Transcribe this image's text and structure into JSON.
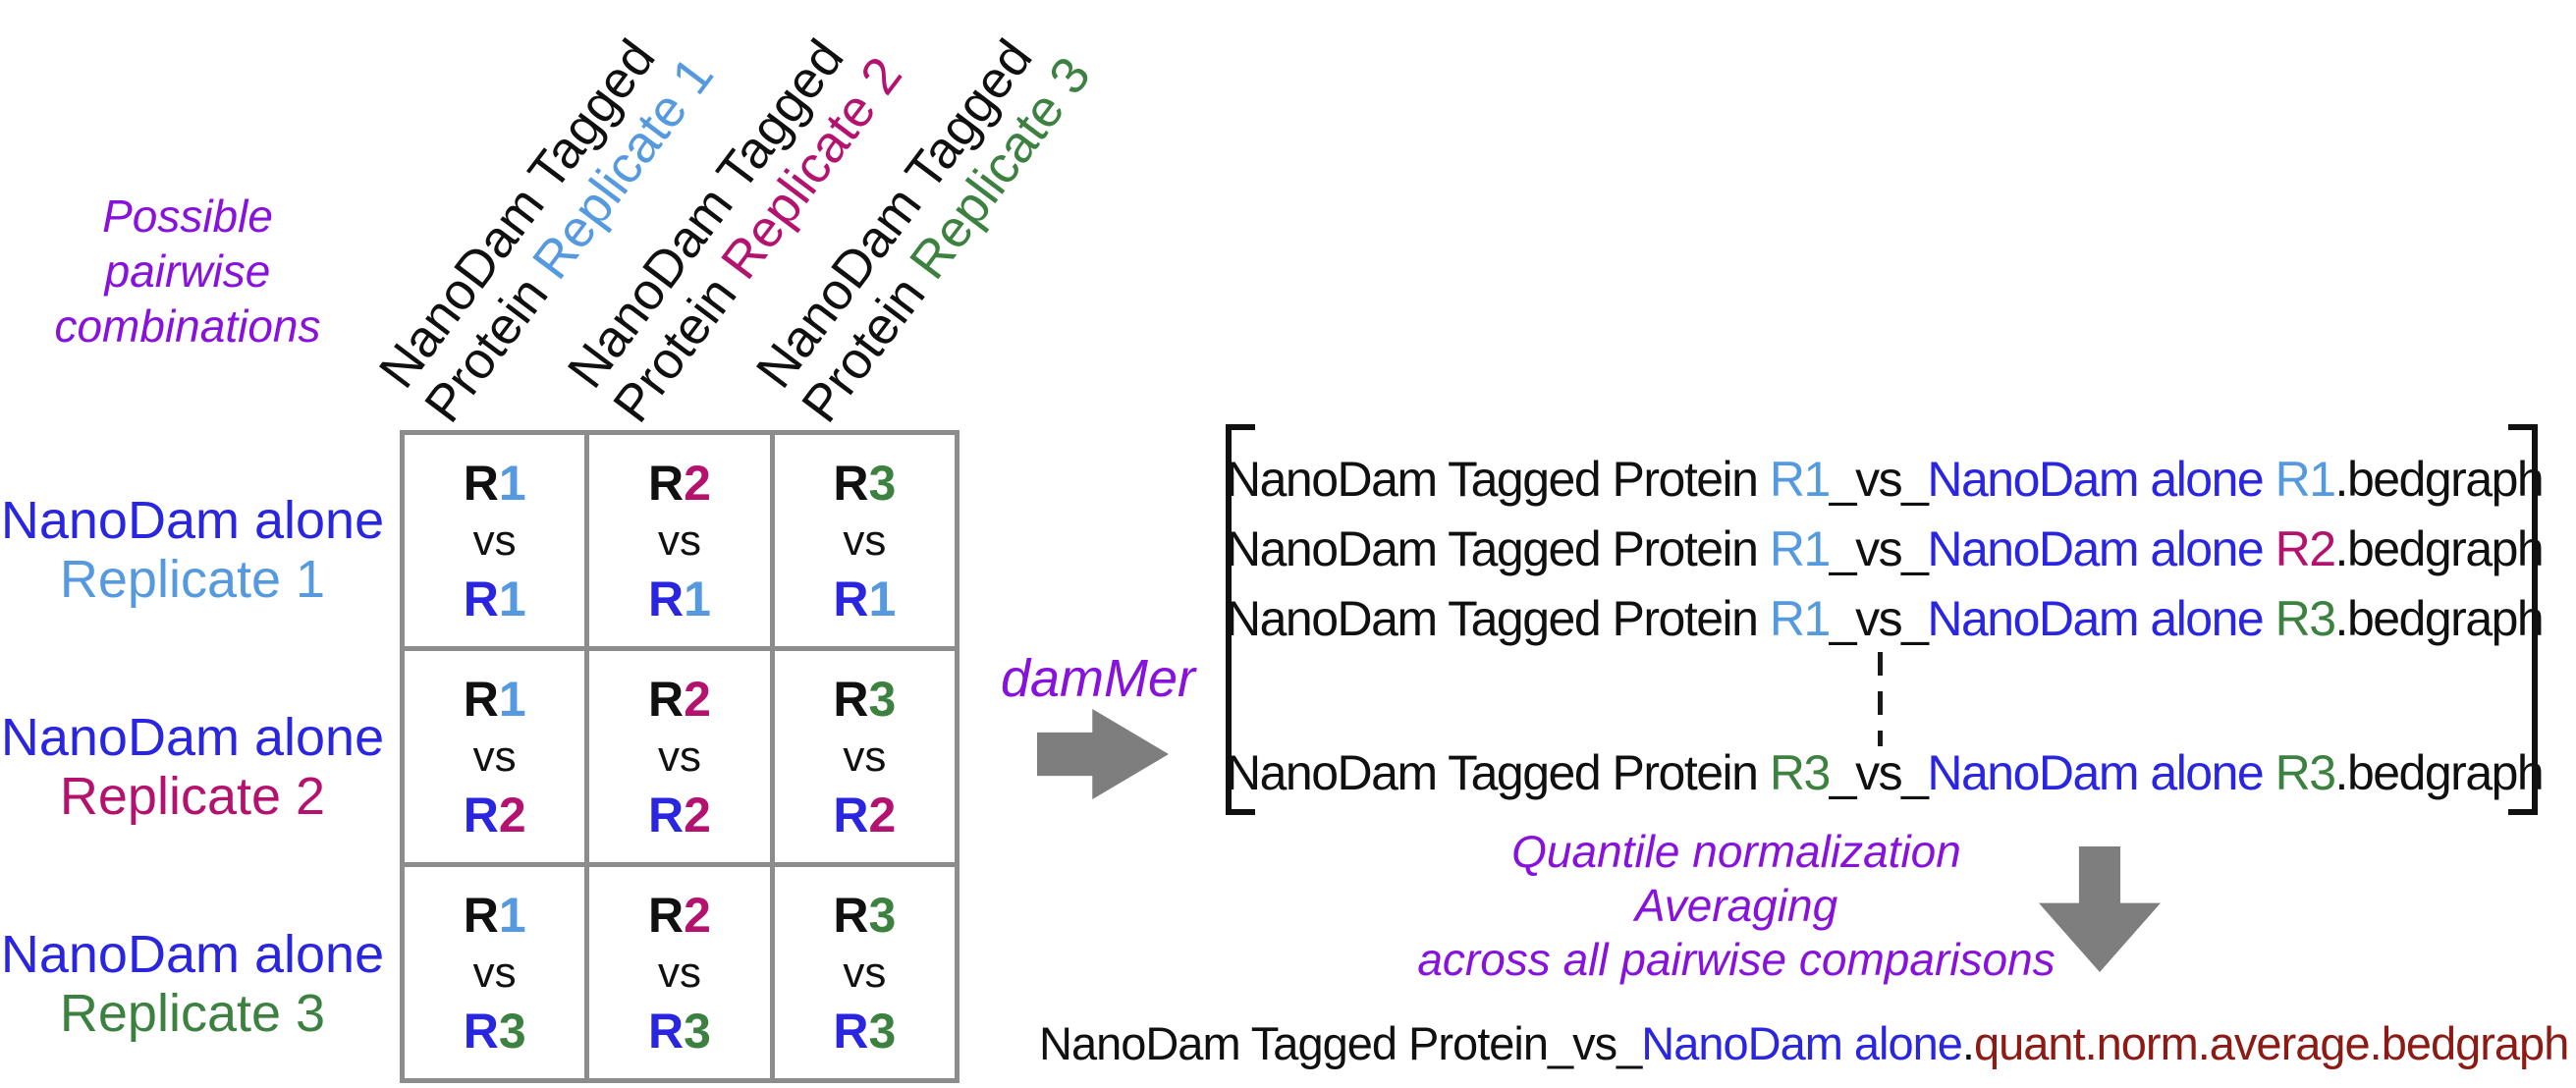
{
  "colors": {
    "black": "#101010",
    "purple": "#8712DC",
    "blue": "#2A26E0",
    "blue_light": "#5599DE",
    "magenta": "#B3136E",
    "green": "#3C8140",
    "dark_red": "#8C1A15",
    "gray_line": "#8C8C8C",
    "gray_arrow": "#7E7E7E"
  },
  "intro": {
    "lines": [
      "Possible",
      "pairwise",
      "combinations"
    ]
  },
  "matrix": {
    "col_headers": [
      {
        "line1": "NanoDam Tagged",
        "line2_prefix": "Protein ",
        "replicate": "Replicate 1",
        "replicate_color": "blue_light"
      },
      {
        "line1": "NanoDam Tagged",
        "line2_prefix": "Protein ",
        "replicate": "Replicate 2",
        "replicate_color": "magenta"
      },
      {
        "line1": "NanoDam Tagged",
        "line2_prefix": "Protein ",
        "replicate": "Replicate 3",
        "replicate_color": "green"
      }
    ],
    "row_labels": [
      {
        "line1": "NanoDam alone",
        "line1_color": "blue",
        "line2": "Replicate 1",
        "line2_color": "blue_light"
      },
      {
        "line1": "NanoDam alone",
        "line1_color": "blue",
        "line2": "Replicate 2",
        "line2_color": "magenta"
      },
      {
        "line1": "NanoDam alone",
        "line1_color": "blue",
        "line2": "Replicate 3",
        "line2_color": "green"
      }
    ],
    "cells": [
      {
        "top": [
          {
            "t": "R",
            "c": "black"
          },
          {
            "t": "1",
            "c": "blue_light"
          }
        ],
        "vs": "vs",
        "bottom": [
          {
            "t": "R",
            "c": "blue"
          },
          {
            "t": "1",
            "c": "blue_light"
          }
        ]
      },
      {
        "top": [
          {
            "t": "R",
            "c": "black"
          },
          {
            "t": "2",
            "c": "magenta"
          }
        ],
        "vs": "vs",
        "bottom": [
          {
            "t": "R",
            "c": "blue"
          },
          {
            "t": "1",
            "c": "blue_light"
          }
        ]
      },
      {
        "top": [
          {
            "t": "R",
            "c": "black"
          },
          {
            "t": "3",
            "c": "green"
          }
        ],
        "vs": "vs",
        "bottom": [
          {
            "t": "R",
            "c": "blue"
          },
          {
            "t": "1",
            "c": "blue_light"
          }
        ]
      },
      {
        "top": [
          {
            "t": "R",
            "c": "black"
          },
          {
            "t": "1",
            "c": "blue_light"
          }
        ],
        "vs": "vs",
        "bottom": [
          {
            "t": "R",
            "c": "blue"
          },
          {
            "t": "2",
            "c": "magenta"
          }
        ]
      },
      {
        "top": [
          {
            "t": "R",
            "c": "black"
          },
          {
            "t": "2",
            "c": "magenta"
          }
        ],
        "vs": "vs",
        "bottom": [
          {
            "t": "R",
            "c": "blue"
          },
          {
            "t": "2",
            "c": "magenta"
          }
        ]
      },
      {
        "top": [
          {
            "t": "R",
            "c": "black"
          },
          {
            "t": "3",
            "c": "green"
          }
        ],
        "vs": "vs",
        "bottom": [
          {
            "t": "R",
            "c": "blue"
          },
          {
            "t": "2",
            "c": "magenta"
          }
        ]
      },
      {
        "top": [
          {
            "t": "R",
            "c": "black"
          },
          {
            "t": "1",
            "c": "blue_light"
          }
        ],
        "vs": "vs",
        "bottom": [
          {
            "t": "R",
            "c": "blue"
          },
          {
            "t": "3",
            "c": "green"
          }
        ]
      },
      {
        "top": [
          {
            "t": "R",
            "c": "black"
          },
          {
            "t": "2",
            "c": "magenta"
          }
        ],
        "vs": "vs",
        "bottom": [
          {
            "t": "R",
            "c": "blue"
          },
          {
            "t": "3",
            "c": "green"
          }
        ]
      },
      {
        "top": [
          {
            "t": "R",
            "c": "black"
          },
          {
            "t": "3",
            "c": "green"
          }
        ],
        "vs": "vs",
        "bottom": [
          {
            "t": "R",
            "c": "blue"
          },
          {
            "t": "3",
            "c": "green"
          }
        ]
      }
    ]
  },
  "tool": {
    "label": "damMer"
  },
  "bedgraph_list": {
    "lines": [
      [
        {
          "t": "NanoDam Tagged Protein ",
          "c": "black"
        },
        {
          "t": "R1",
          "c": "blue_light"
        },
        {
          "t": "_vs_",
          "c": "black"
        },
        {
          "t": "NanoDam alone ",
          "c": "blue"
        },
        {
          "t": "R1",
          "c": "blue_light"
        },
        {
          "t": ".bedgraph",
          "c": "black"
        }
      ],
      [
        {
          "t": "NanoDam Tagged Protein ",
          "c": "black"
        },
        {
          "t": "R1",
          "c": "blue_light"
        },
        {
          "t": "_vs_",
          "c": "black"
        },
        {
          "t": "NanoDam alone ",
          "c": "blue"
        },
        {
          "t": "R2",
          "c": "magenta"
        },
        {
          "t": ".bedgraph",
          "c": "black"
        }
      ],
      [
        {
          "t": "NanoDam Tagged Protein ",
          "c": "black"
        },
        {
          "t": "R1",
          "c": "blue_light"
        },
        {
          "t": "_vs_",
          "c": "black"
        },
        {
          "t": "NanoDam alone ",
          "c": "blue"
        },
        {
          "t": "R3",
          "c": "green"
        },
        {
          "t": ".bedgraph",
          "c": "black"
        }
      ],
      [
        {
          "t": "NanoDam Tagged Protein ",
          "c": "black"
        },
        {
          "t": "R3",
          "c": "green"
        },
        {
          "t": "_vs_",
          "c": "black"
        },
        {
          "t": "NanoDam alone ",
          "c": "blue"
        },
        {
          "t": "R3",
          "c": "green"
        },
        {
          "t": ".bedgraph",
          "c": "black"
        }
      ]
    ]
  },
  "process": {
    "lines": [
      "Quantile normalization",
      "Averaging",
      "across all pairwise comparisons"
    ]
  },
  "output": {
    "segments": [
      {
        "t": "NanoDam Tagged Protein_vs_",
        "c": "black"
      },
      {
        "t": "NanoDam alone",
        "c": "blue"
      },
      {
        "t": ".",
        "c": "black"
      },
      {
        "t": "quant.norm.average.bedgraph",
        "c": "dark_red"
      }
    ]
  }
}
